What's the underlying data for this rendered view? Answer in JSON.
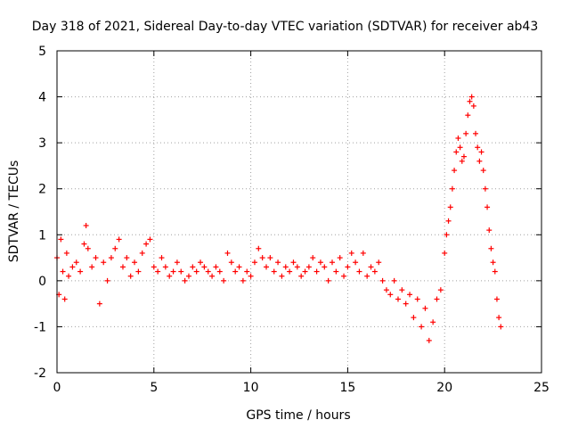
{
  "chart_data": {
    "type": "scatter",
    "title": "Day 318 of 2021, Sidereal Day-to-day VTEC variation (SDTVAR) for receiver ab43",
    "xlabel": "GPS time / hours",
    "ylabel": "SDTVAR / TECUs",
    "xlim": [
      0,
      25
    ],
    "ylim": [
      -2,
      5
    ],
    "xticks": [
      "0",
      "5",
      "10",
      "15",
      "20",
      "25"
    ],
    "yticks": [
      "-2",
      "-1",
      "0",
      "1",
      "2",
      "3",
      "4",
      "5"
    ],
    "grid": true,
    "marker": "+",
    "series": [
      {
        "name": "SDTVAR",
        "color": "#ff0000",
        "x": [
          0.0,
          0.1,
          0.2,
          0.3,
          0.4,
          0.5,
          0.6,
          0.8,
          1.0,
          1.2,
          1.4,
          1.5,
          1.6,
          1.8,
          2.0,
          2.2,
          2.4,
          2.6,
          2.8,
          3.0,
          3.2,
          3.4,
          3.6,
          3.8,
          4.0,
          4.2,
          4.4,
          4.6,
          4.8,
          5.0,
          5.2,
          5.4,
          5.6,
          5.8,
          6.0,
          6.2,
          6.4,
          6.6,
          6.8,
          7.0,
          7.2,
          7.4,
          7.6,
          7.8,
          8.0,
          8.2,
          8.4,
          8.6,
          8.8,
          9.0,
          9.2,
          9.4,
          9.6,
          9.8,
          10.0,
          10.2,
          10.4,
          10.6,
          10.8,
          11.0,
          11.2,
          11.4,
          11.6,
          11.8,
          12.0,
          12.2,
          12.4,
          12.6,
          12.8,
          13.0,
          13.2,
          13.4,
          13.6,
          13.8,
          14.0,
          14.2,
          14.4,
          14.6,
          14.8,
          15.0,
          15.2,
          15.4,
          15.6,
          15.8,
          16.0,
          16.2,
          16.4,
          16.6,
          16.8,
          17.0,
          17.2,
          17.4,
          17.6,
          17.8,
          18.0,
          18.2,
          18.4,
          18.6,
          18.8,
          19.0,
          19.2,
          19.4,
          19.6,
          19.8,
          20.0,
          20.1,
          20.2,
          20.3,
          20.4,
          20.5,
          20.6,
          20.7,
          20.8,
          20.9,
          21.0,
          21.1,
          21.2,
          21.3,
          21.4,
          21.5,
          21.6,
          21.7,
          21.8,
          21.9,
          22.0,
          22.1,
          22.2,
          22.3,
          22.4,
          22.5,
          22.6,
          22.7,
          22.8,
          22.9
        ],
        "y": [
          0.5,
          -0.3,
          0.9,
          0.2,
          -0.4,
          0.6,
          0.1,
          0.3,
          0.4,
          0.2,
          0.8,
          1.2,
          0.7,
          0.3,
          0.5,
          -0.5,
          0.4,
          0.0,
          0.5,
          0.7,
          0.9,
          0.3,
          0.5,
          0.1,
          0.4,
          0.2,
          0.6,
          0.8,
          0.9,
          0.3,
          0.2,
          0.5,
          0.3,
          0.1,
          0.2,
          0.4,
          0.2,
          0.0,
          0.1,
          0.3,
          0.2,
          0.4,
          0.3,
          0.2,
          0.1,
          0.3,
          0.2,
          0.0,
          0.6,
          0.4,
          0.2,
          0.3,
          0.0,
          0.2,
          0.1,
          0.4,
          0.7,
          0.5,
          0.3,
          0.5,
          0.2,
          0.4,
          0.1,
          0.3,
          0.2,
          0.4,
          0.3,
          0.1,
          0.2,
          0.3,
          0.5,
          0.2,
          0.4,
          0.3,
          0.0,
          0.4,
          0.2,
          0.5,
          0.1,
          0.3,
          0.6,
          0.4,
          0.2,
          0.6,
          0.1,
          0.3,
          0.2,
          0.4,
          0.0,
          -0.2,
          -0.3,
          0.0,
          -0.4,
          -0.2,
          -0.5,
          -0.3,
          -0.8,
          -0.4,
          -1.0,
          -0.6,
          -1.3,
          -0.9,
          -0.4,
          -0.2,
          0.6,
          1.0,
          1.3,
          1.6,
          2.0,
          2.4,
          2.8,
          3.1,
          2.9,
          2.6,
          2.7,
          3.2,
          3.6,
          3.9,
          4.0,
          3.8,
          3.2,
          2.9,
          2.6,
          2.8,
          2.4,
          2.0,
          1.6,
          1.1,
          0.7,
          0.4,
          0.2,
          -0.4,
          -0.8,
          -1.0
        ]
      }
    ]
  }
}
